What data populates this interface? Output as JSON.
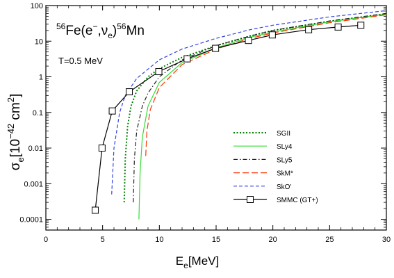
{
  "chart_data": {
    "type": "line",
    "title_parts": {
      "iso1": "56",
      "fe": "Fe(e",
      "minus": "−",
      "comma": ",ν",
      "e_sub": "e",
      "close": ")",
      "iso2": "56",
      "mn": "Mn"
    },
    "temperature_label": "T=0.5 MeV",
    "xlabel_parts": {
      "main": "E",
      "sub": "e",
      "unit": "[MeV]"
    },
    "ylabel_parts": {
      "sigma": "σ",
      "sub": "e",
      "bracket": "[10",
      "exp": "−42",
      "unit": " cm",
      "sq": "2",
      "close": "]"
    },
    "xlim": [
      0,
      30
    ],
    "ylim": [
      5e-05,
      100
    ],
    "yscale": "log",
    "x_ticks": [
      0,
      5,
      10,
      15,
      20,
      25,
      30
    ],
    "x_tick_labels": [
      "0",
      "5",
      "10",
      "15",
      "20",
      "25",
      "30"
    ],
    "y_ticks": [
      0.0001,
      0.001,
      0.01,
      0.1,
      1,
      10,
      100
    ],
    "y_tick_labels": [
      "0.0001",
      "0.001",
      "0.01",
      "0.1",
      "1",
      "10",
      "100"
    ],
    "grid": false,
    "legend_position": "right",
    "series": [
      {
        "name": "SGII",
        "color": "#008000",
        "dash": "dotted",
        "x": [
          6.9,
          7.0,
          7.2,
          7.5,
          8,
          9,
          10,
          12,
          15,
          18,
          20,
          25,
          30
        ],
        "y": [
          0.0003,
          0.005,
          0.04,
          0.15,
          0.4,
          1.0,
          1.7,
          3.5,
          7.5,
          14,
          20,
          36,
          58
        ]
      },
      {
        "name": "SLy4",
        "color": "#33dd33",
        "dash": "solid",
        "x": [
          8.2,
          8.3,
          8.5,
          9,
          10,
          12,
          15,
          18,
          20,
          25,
          30
        ],
        "y": [
          0.0001,
          0.002,
          0.02,
          0.15,
          0.7,
          2.5,
          6.5,
          13,
          18,
          35,
          58
        ]
      },
      {
        "name": "SLy5",
        "color": "#222222",
        "dash": "dashdot",
        "x": [
          7.7,
          7.8,
          8,
          8.5,
          9,
          10,
          12,
          15,
          18,
          20,
          25,
          30
        ],
        "y": [
          0.0003,
          0.005,
          0.03,
          0.15,
          0.35,
          1.0,
          3.0,
          7.5,
          14,
          20,
          37,
          60
        ]
      },
      {
        "name": "SkM*",
        "color": "#ff3300",
        "dash": "longdash",
        "x": [
          8.8,
          8.9,
          9.2,
          10,
          12,
          15,
          18,
          20,
          25,
          30
        ],
        "y": [
          0.006,
          0.03,
          0.12,
          0.5,
          2.2,
          6.0,
          12,
          17,
          33,
          55
        ]
      },
      {
        "name": "SkO'",
        "color": "#3344dd",
        "dash": "dashed",
        "x": [
          5.8,
          6.0,
          6.5,
          7.0,
          8,
          10,
          12,
          15,
          18,
          20,
          25,
          30
        ],
        "y": [
          0.0005,
          0.01,
          0.1,
          0.3,
          0.9,
          3.0,
          6.0,
          12,
          21,
          28,
          48,
          72
        ]
      },
      {
        "name": "SMMC (GT+)",
        "color": "#000000",
        "dash": "solid",
        "marker": "square",
        "x": [
          4.35,
          4.95,
          5.85,
          7.35,
          9.95,
          12.45,
          14.95,
          17.85,
          19.95,
          23.15,
          25.75,
          27.75
        ],
        "y": [
          0.00018,
          0.01,
          0.11,
          0.38,
          1.4,
          3.2,
          6.3,
          10.5,
          15,
          21,
          25,
          28
        ]
      }
    ]
  }
}
